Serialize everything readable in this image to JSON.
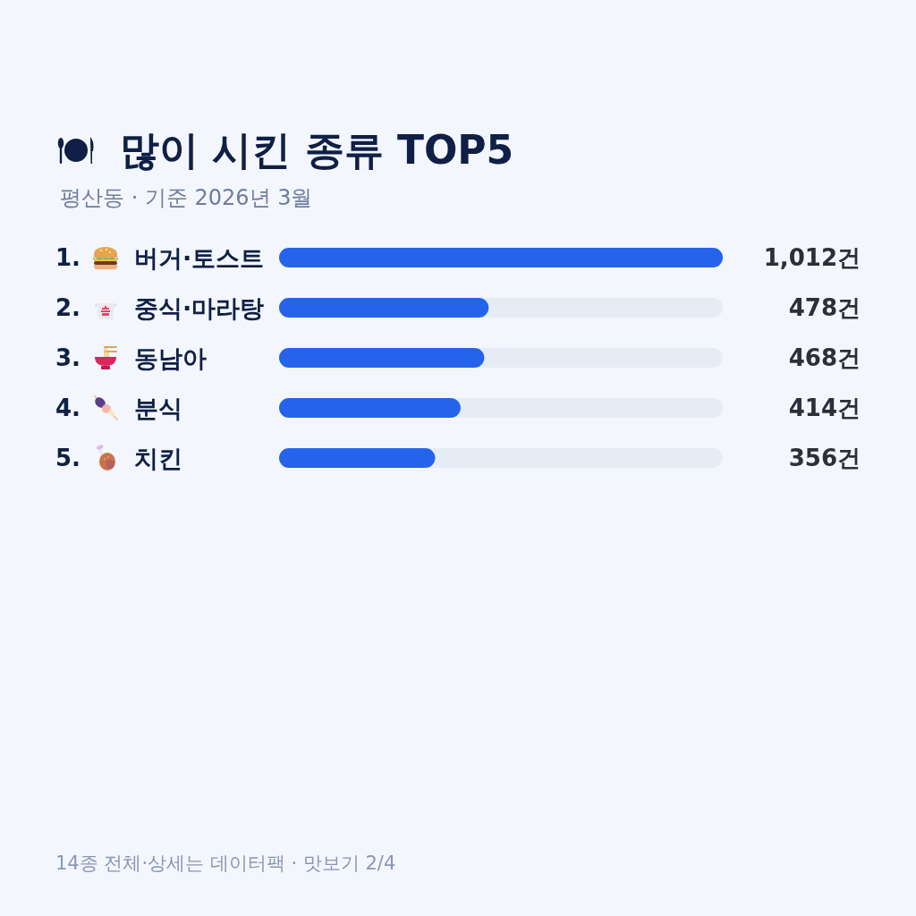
{
  "chart_data": {
    "type": "bar",
    "orientation": "horizontal",
    "title": "많이 시킨 종류 TOP5",
    "subtitle": "평산동 · 기준 2026년 3월",
    "categories": [
      "1. 버거·토스트",
      "2. 중식·마라탕",
      "3. 동남아",
      "4. 분식",
      "5. 치킨"
    ],
    "values": [
      1012,
      478,
      468,
      414,
      356
    ],
    "color": "#2563eb",
    "value_labels": [
      "1,012건",
      "478건",
      "468건",
      "414건",
      "356건"
    ],
    "annotations": [
      "14종 전체·상세는 데이터팩 · 맛보기 2/4"
    ]
  }
}
